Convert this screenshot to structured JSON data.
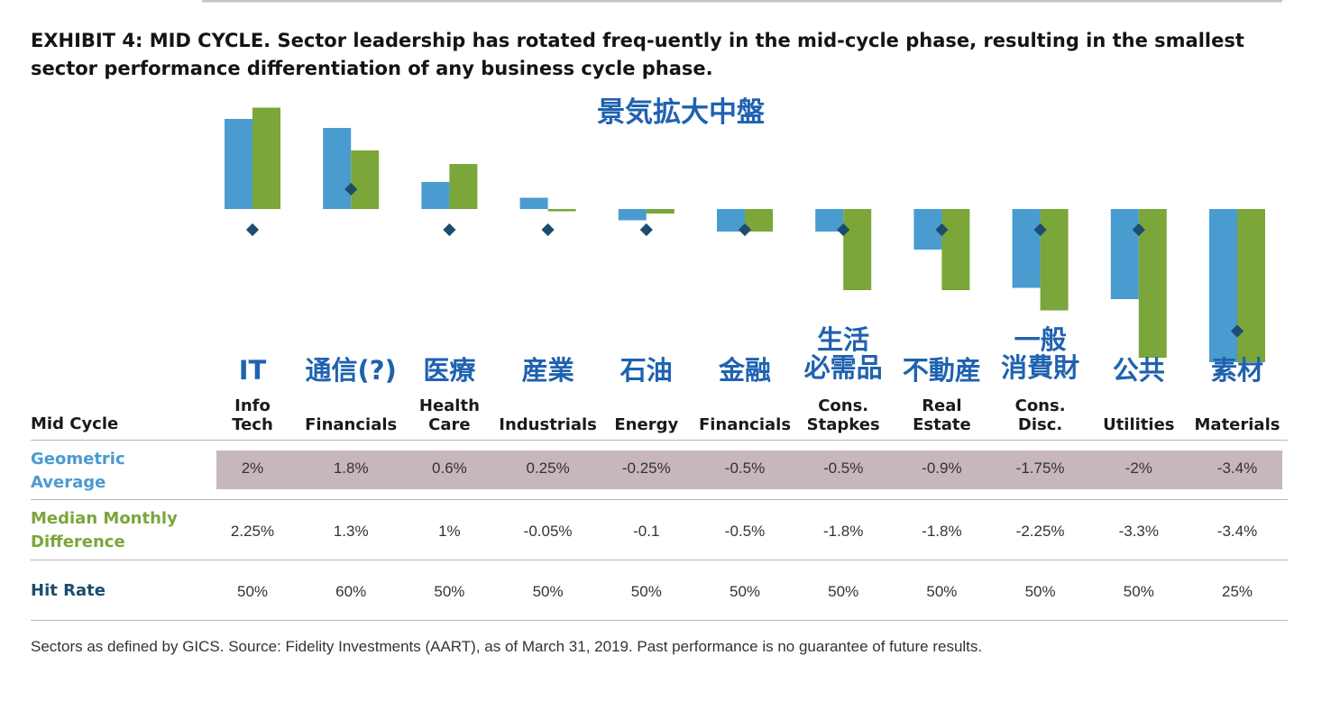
{
  "title": "EXHIBIT 4: MID CYCLE. Sector leadership has rotated freq-uently in the mid-cycle phase, resulting in the smallest sector performance differentiation of any business cycle phase.",
  "jp_title": "景気拡大中盤",
  "table": {
    "header_label": "Mid Cycle",
    "geo_label_1": "Geometric",
    "geo_label_2": "Average",
    "med_label_1": "Median Monthly",
    "med_label_2": "Difference",
    "hit_label": "Hit Rate",
    "geometric_average": [
      "2%",
      "1.8%",
      "0.6%",
      "0.25%",
      "-0.25%",
      "-0.5%",
      "-0.5%",
      "-0.9%",
      "-1.75%",
      "-2%",
      "-3.4%"
    ],
    "median_monthly_difference": [
      "2.25%",
      "1.3%",
      "1%",
      "-0.05%",
      "-0.1",
      "-0.5%",
      "-1.8%",
      "-1.8%",
      "-2.25%",
      "-3.3%",
      "-3.4%"
    ],
    "hit_rate": [
      "50%",
      "60%",
      "50%",
      "50%",
      "50%",
      "50%",
      "50%",
      "50%",
      "50%",
      "50%",
      "25%"
    ]
  },
  "footnote": "Sectors as defined by GICS. Source: Fidelity Investments (AART), as of March 31, 2019. Past performance is no guarantee of future results.",
  "colors": {
    "geometric": "#4a9bd0",
    "median": "#7aa63a",
    "hit_rate_marker": "#1d4d6e",
    "jp_text": "#1f62b0",
    "highlight_band": "#c6b6bd"
  },
  "chart_data": {
    "type": "bar",
    "categories": [
      {
        "line1": "Info",
        "line2": "Tech",
        "jp1": "IT",
        "jp2": ""
      },
      {
        "line1": "",
        "line2": "Financials",
        "jp1": "通信(?)",
        "jp2": ""
      },
      {
        "line1": "Health",
        "line2": "Care",
        "jp1": "医療",
        "jp2": ""
      },
      {
        "line1": "",
        "line2": "Industrials",
        "jp1": "産業",
        "jp2": ""
      },
      {
        "line1": "",
        "line2": "Energy",
        "jp1": "石油",
        "jp2": ""
      },
      {
        "line1": "",
        "line2": "Financials",
        "jp1": "金融",
        "jp2": ""
      },
      {
        "line1": "Cons.",
        "line2": "Stapkes",
        "jp1": "生活",
        "jp2": "必需品"
      },
      {
        "line1": "Real",
        "line2": "Estate",
        "jp1": "不動産",
        "jp2": ""
      },
      {
        "line1": "Cons.",
        "line2": "Disc.",
        "jp1": "一般",
        "jp2": "消費財"
      },
      {
        "line1": "",
        "line2": "Utilities",
        "jp1": "公共",
        "jp2": ""
      },
      {
        "line1": "",
        "line2": "Materials",
        "jp1": "素材",
        "jp2": ""
      }
    ],
    "series": [
      {
        "name": "Geometric Average",
        "values": [
          2,
          1.8,
          0.6,
          0.25,
          -0.25,
          -0.5,
          -0.5,
          -0.9,
          -1.75,
          -2,
          -3.4
        ]
      },
      {
        "name": "Median Monthly Difference",
        "values": [
          2.25,
          1.3,
          1,
          -0.05,
          -0.1,
          -0.5,
          -1.8,
          -1.8,
          -2.25,
          -3.3,
          -3.4
        ]
      },
      {
        "name": "Hit Rate",
        "values": [
          50,
          60,
          50,
          50,
          50,
          50,
          50,
          50,
          50,
          50,
          25
        ]
      }
    ],
    "ylim": [
      -3.4,
      2.3
    ],
    "grid": false,
    "legend": "none"
  }
}
